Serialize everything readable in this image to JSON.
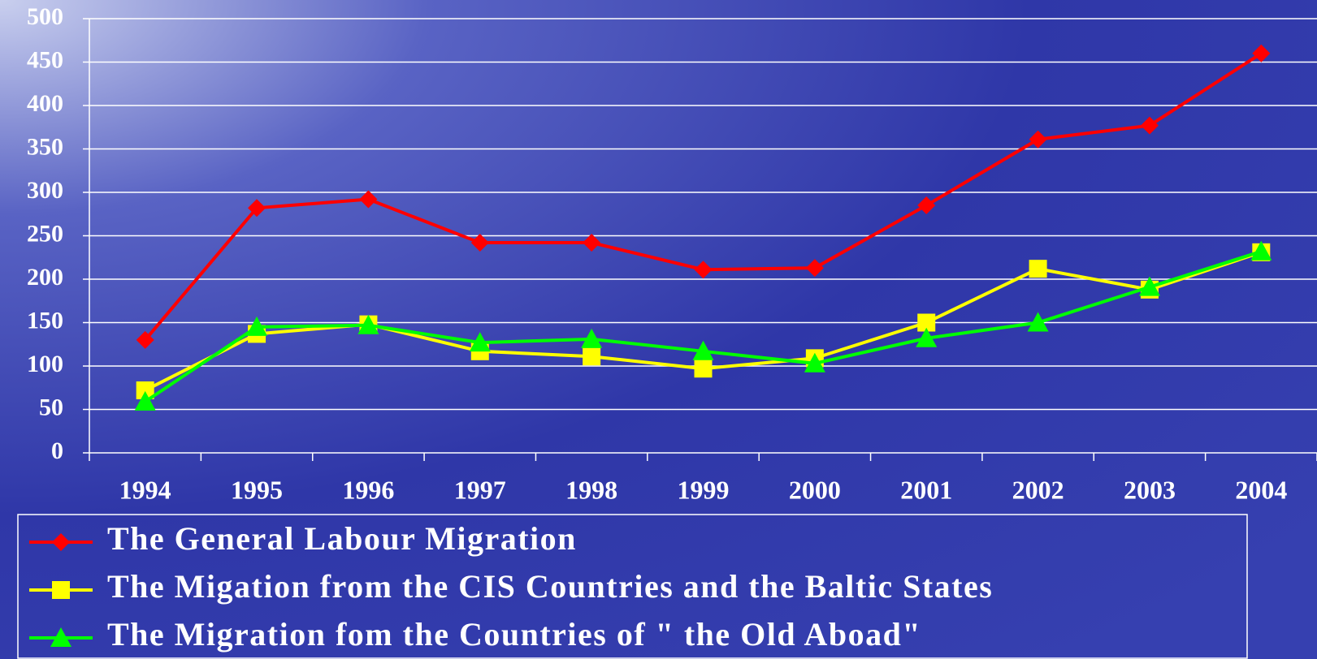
{
  "chart_data": {
    "type": "line",
    "categories": [
      "1994",
      "1995",
      "1996",
      "1997",
      "1998",
      "1999",
      "2000",
      "2001",
      "2002",
      "2003",
      "2004"
    ],
    "series": [
      {
        "name": "The General Labour Migration",
        "color": "#ff0000",
        "marker": "diamond",
        "values": [
          130,
          282,
          292,
          242,
          242,
          211,
          213,
          285,
          361,
          377,
          460
        ]
      },
      {
        "name": "The Migation from the CIS Countries and the Baltic States",
        "color": "#ffff00",
        "marker": "square",
        "values": [
          72,
          137,
          148,
          117,
          111,
          97,
          109,
          150,
          212,
          188,
          231
        ]
      },
      {
        "name": "The Migration fom the Countries of \" the Old Aboad\"",
        "color": "#00ff00",
        "marker": "triangle",
        "values": [
          59,
          145,
          147,
          127,
          131,
          117,
          103,
          132,
          150,
          191,
          232
        ]
      }
    ],
    "ylim": [
      0,
      500
    ],
    "yticks": [
      0,
      50,
      100,
      150,
      200,
      250,
      300,
      350,
      400,
      450,
      500
    ],
    "grid": true,
    "legend": "bottom"
  }
}
